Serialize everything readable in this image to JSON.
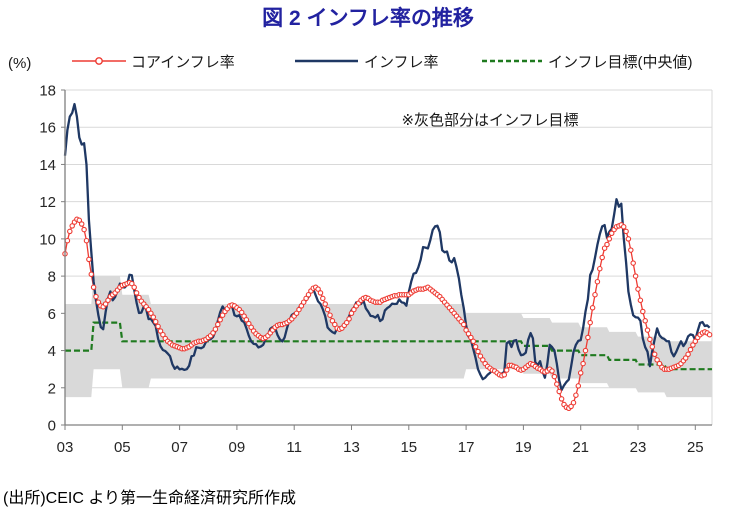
{
  "chart_data": {
    "type": "line",
    "title": "図 2  インフレ率の推移",
    "y_unit": "(%)",
    "annotation": "※灰色部分はインフレ目標",
    "source": "(出所)CEIC より第一生命経済研究所作成",
    "x_start_year": 2003,
    "x_end": 2025.583,
    "x_step_months": 1,
    "ylim": [
      0,
      18
    ],
    "y_ticks": [
      0,
      2,
      4,
      6,
      8,
      10,
      12,
      14,
      16,
      18
    ],
    "x_ticks": [
      {
        "label": "03",
        "year": 2003
      },
      {
        "label": "05",
        "year": 2005
      },
      {
        "label": "07",
        "year": 2007
      },
      {
        "label": "09",
        "year": 2009
      },
      {
        "label": "11",
        "year": 2011
      },
      {
        "label": "13",
        "year": 2013
      },
      {
        "label": "15",
        "year": 2015
      },
      {
        "label": "17",
        "year": 2017
      },
      {
        "label": "19",
        "year": 2019
      },
      {
        "label": "21",
        "year": 2021
      },
      {
        "label": "23",
        "year": 2023
      },
      {
        "label": "25",
        "year": 2025
      }
    ],
    "legend": [
      {
        "label": "コアインフレ率",
        "series": "core"
      },
      {
        "label": "インフレ率",
        "series": "headline"
      },
      {
        "label": "インフレ目標(中央値)",
        "series": "target_median"
      }
    ],
    "colors": {
      "core": "#EE3B33",
      "headline": "#1F3864",
      "target": "#1F7A1F",
      "band": "#D9D9D9",
      "grid": "#D9D9D9",
      "axis": "#808080",
      "title": "#2222A0"
    },
    "series": [
      {
        "id": "core",
        "name": "コアインフレ率",
        "values": [
          9.2,
          9.9,
          10.4,
          10.7,
          10.9,
          11.05,
          11.0,
          10.8,
          10.5,
          9.9,
          8.9,
          8.1,
          7.4,
          6.9,
          6.6,
          6.4,
          6.35,
          6.5,
          6.7,
          6.9,
          7.0,
          7.1,
          7.25,
          7.4,
          7.5,
          7.55,
          7.6,
          7.65,
          7.6,
          7.4,
          7.1,
          6.85,
          6.65,
          6.5,
          6.35,
          6.2,
          6.0,
          5.8,
          5.55,
          5.3,
          5.05,
          4.85,
          4.65,
          4.5,
          4.4,
          4.3,
          4.25,
          4.2,
          4.15,
          4.1,
          4.1,
          4.15,
          4.2,
          4.3,
          4.4,
          4.45,
          4.5,
          4.5,
          4.55,
          4.6,
          4.7,
          4.8,
          4.95,
          5.15,
          5.4,
          5.65,
          5.9,
          6.1,
          6.25,
          6.4,
          6.45,
          6.4,
          6.3,
          6.2,
          6.05,
          5.85,
          5.65,
          5.45,
          5.25,
          5.05,
          4.9,
          4.8,
          4.7,
          4.65,
          4.7,
          4.8,
          4.95,
          5.1,
          5.25,
          5.35,
          5.4,
          5.4,
          5.45,
          5.5,
          5.6,
          5.7,
          5.85,
          6.0,
          6.2,
          6.4,
          6.6,
          6.8,
          7.0,
          7.2,
          7.35,
          7.4,
          7.3,
          7.1,
          6.8,
          6.5,
          6.2,
          5.9,
          5.6,
          5.4,
          5.2,
          5.15,
          5.2,
          5.35,
          5.5,
          5.7,
          6.0,
          6.2,
          6.4,
          6.55,
          6.7,
          6.8,
          6.85,
          6.8,
          6.7,
          6.65,
          6.6,
          6.6,
          6.6,
          6.7,
          6.75,
          6.8,
          6.85,
          6.9,
          6.95,
          6.95,
          7.0,
          7.0,
          7.0,
          7.0,
          7.0,
          7.1,
          7.2,
          7.25,
          7.3,
          7.3,
          7.3,
          7.35,
          7.4,
          7.3,
          7.2,
          7.1,
          7.0,
          6.9,
          6.75,
          6.6,
          6.45,
          6.3,
          6.15,
          6.0,
          5.85,
          5.7,
          5.55,
          5.4,
          5.1,
          4.9,
          4.7,
          4.5,
          4.2,
          3.95,
          3.7,
          3.5,
          3.3,
          3.15,
          3.05,
          2.95,
          2.9,
          2.8,
          2.7,
          2.65,
          2.7,
          2.95,
          3.2,
          3.2,
          3.15,
          3.1,
          3.0,
          2.95,
          3.0,
          3.1,
          3.2,
          3.3,
          3.25,
          3.15,
          3.05,
          3.0,
          2.9,
          2.85,
          2.9,
          3.0,
          2.9,
          2.6,
          2.2,
          1.8,
          1.4,
          1.1,
          0.95,
          0.9,
          1.0,
          1.2,
          1.6,
          2.1,
          2.8,
          3.3,
          4.0,
          4.7,
          5.5,
          6.3,
          7.0,
          7.7,
          8.4,
          9.0,
          9.5,
          9.7,
          10.0,
          10.3,
          10.5,
          10.65,
          10.7,
          10.75,
          10.65,
          10.4,
          10.0,
          9.4,
          8.7,
          8.0,
          7.3,
          6.7,
          6.1,
          5.6,
          5.1,
          4.6,
          4.2,
          3.8,
          3.5,
          3.3,
          3.1,
          3.0,
          3.0,
          3.0,
          3.05,
          3.1,
          3.15,
          3.2,
          3.3,
          3.45,
          3.6,
          3.8,
          4.05,
          4.3,
          4.5,
          4.7,
          4.85,
          4.95,
          5.0,
          4.95,
          4.85
        ]
      },
      {
        "id": "headline",
        "name": "インフレ率",
        "values": [
          14.47,
          15.85,
          16.57,
          16.77,
          17.24,
          16.57,
          15.45,
          15.07,
          15.14,
          13.98,
          11.02,
          9.3,
          7.71,
          6.69,
          5.89,
          5.26,
          5.15,
          6.06,
          6.81,
          7.18,
          6.7,
          6.87,
          7.24,
          7.6,
          7.41,
          7.39,
          7.54,
          8.07,
          8.05,
          7.27,
          6.57,
          6.02,
          6.04,
          6.36,
          6.22,
          5.69,
          5.7,
          5.51,
          5.32,
          4.63,
          4.23,
          4.03,
          3.97,
          3.84,
          3.7,
          3.26,
          3.02,
          3.14,
          2.99,
          3.02,
          2.96,
          3.0,
          3.18,
          3.69,
          3.74,
          4.18,
          4.15,
          4.12,
          4.19,
          4.46,
          4.56,
          4.61,
          4.73,
          5.04,
          5.58,
          6.06,
          6.37,
          6.17,
          6.25,
          6.41,
          6.39,
          5.9,
          5.84,
          5.9,
          5.61,
          5.53,
          5.2,
          4.8,
          4.5,
          4.36,
          4.34,
          4.17,
          4.22,
          4.31,
          4.59,
          4.83,
          5.17,
          5.26,
          5.22,
          4.84,
          4.6,
          4.49,
          4.7,
          5.2,
          5.63,
          5.91,
          5.99,
          6.01,
          6.3,
          6.51,
          6.55,
          6.71,
          6.87,
          7.23,
          7.31,
          6.97,
          6.64,
          6.5,
          6.22,
          5.85,
          5.24,
          5.1,
          4.99,
          4.92,
          5.2,
          5.24,
          5.28,
          5.45,
          5.53,
          5.84,
          6.15,
          6.31,
          6.59,
          6.49,
          6.5,
          6.7,
          6.27,
          6.09,
          5.86,
          5.84,
          5.77,
          5.91,
          5.59,
          5.68,
          6.15,
          6.28,
          6.37,
          6.52,
          6.5,
          6.51,
          6.75,
          6.59,
          6.56,
          6.41,
          7.14,
          7.7,
          8.13,
          8.17,
          8.47,
          8.89,
          9.56,
          9.53,
          9.49,
          9.93,
          10.48,
          10.67,
          10.71,
          10.36,
          9.39,
          9.28,
          9.32,
          8.84,
          8.74,
          8.97,
          8.48,
          7.87,
          6.99,
          6.29,
          5.35,
          4.76,
          4.57,
          4.08,
          3.6,
          3.0,
          2.71,
          2.46,
          2.54,
          2.7,
          2.8,
          2.95,
          2.86,
          2.84,
          2.68,
          2.76,
          2.86,
          4.39,
          4.48,
          4.19,
          4.53,
          4.56,
          4.05,
          3.75,
          3.78,
          3.89,
          4.58,
          4.94,
          4.66,
          3.37,
          3.22,
          3.43,
          2.89,
          2.54,
          3.27,
          4.31,
          4.19,
          4.01,
          3.3,
          2.4,
          1.88,
          2.13,
          2.31,
          2.44,
          3.14,
          3.92,
          4.31,
          4.52,
          4.56,
          5.2,
          6.1,
          6.76,
          8.06,
          8.35,
          8.99,
          9.68,
          10.25,
          10.67,
          10.74,
          10.06,
          10.38,
          10.54,
          11.3,
          12.13,
          11.73,
          11.89,
          10.07,
          8.73,
          7.17,
          6.47,
          5.9,
          5.79,
          5.77,
          5.6,
          4.65,
          4.18,
          3.94,
          3.16,
          3.99,
          4.61,
          5.19,
          4.82,
          4.68,
          4.62,
          4.51,
          4.5,
          3.93,
          3.69,
          3.93,
          4.23,
          4.5,
          4.24,
          4.42,
          4.76,
          4.87,
          4.83,
          4.56,
          5.06,
          5.48,
          5.53,
          5.32,
          5.35,
          5.23
        ]
      }
    ],
    "target_median_steps": [
      {
        "from": 2003,
        "to": 2004,
        "value": 4.0
      },
      {
        "from": 2004,
        "to": 2005,
        "value": 5.5
      },
      {
        "from": 2005,
        "to": 2019,
        "value": 4.5
      },
      {
        "from": 2019,
        "to": 2020,
        "value": 4.25
      },
      {
        "from": 2020,
        "to": 2021,
        "value": 4.0
      },
      {
        "from": 2021,
        "to": 2022,
        "value": 3.75
      },
      {
        "from": 2022,
        "to": 2023,
        "value": 3.5
      },
      {
        "from": 2023,
        "to": 2024,
        "value": 3.25
      },
      {
        "from": 2024,
        "to": 2025.583,
        "value": 3.0
      }
    ],
    "target_band_steps": [
      {
        "from": 2003,
        "to": 2004,
        "low": 1.5,
        "high": 6.5
      },
      {
        "from": 2004,
        "to": 2005,
        "low": 3.0,
        "high": 8.0
      },
      {
        "from": 2005,
        "to": 2006,
        "low": 2.0,
        "high": 7.0
      },
      {
        "from": 2006,
        "to": 2017,
        "low": 2.5,
        "high": 6.5
      },
      {
        "from": 2017,
        "to": 2019,
        "low": 3.0,
        "high": 6.0
      },
      {
        "from": 2019,
        "to": 2020,
        "low": 2.75,
        "high": 5.75
      },
      {
        "from": 2020,
        "to": 2021,
        "low": 2.5,
        "high": 5.5
      },
      {
        "from": 2021,
        "to": 2022,
        "low": 2.25,
        "high": 5.25
      },
      {
        "from": 2022,
        "to": 2023,
        "low": 2.0,
        "high": 5.0
      },
      {
        "from": 2023,
        "to": 2024,
        "low": 1.75,
        "high": 4.75
      },
      {
        "from": 2024,
        "to": 2025.583,
        "low": 1.5,
        "high": 4.5
      }
    ]
  }
}
